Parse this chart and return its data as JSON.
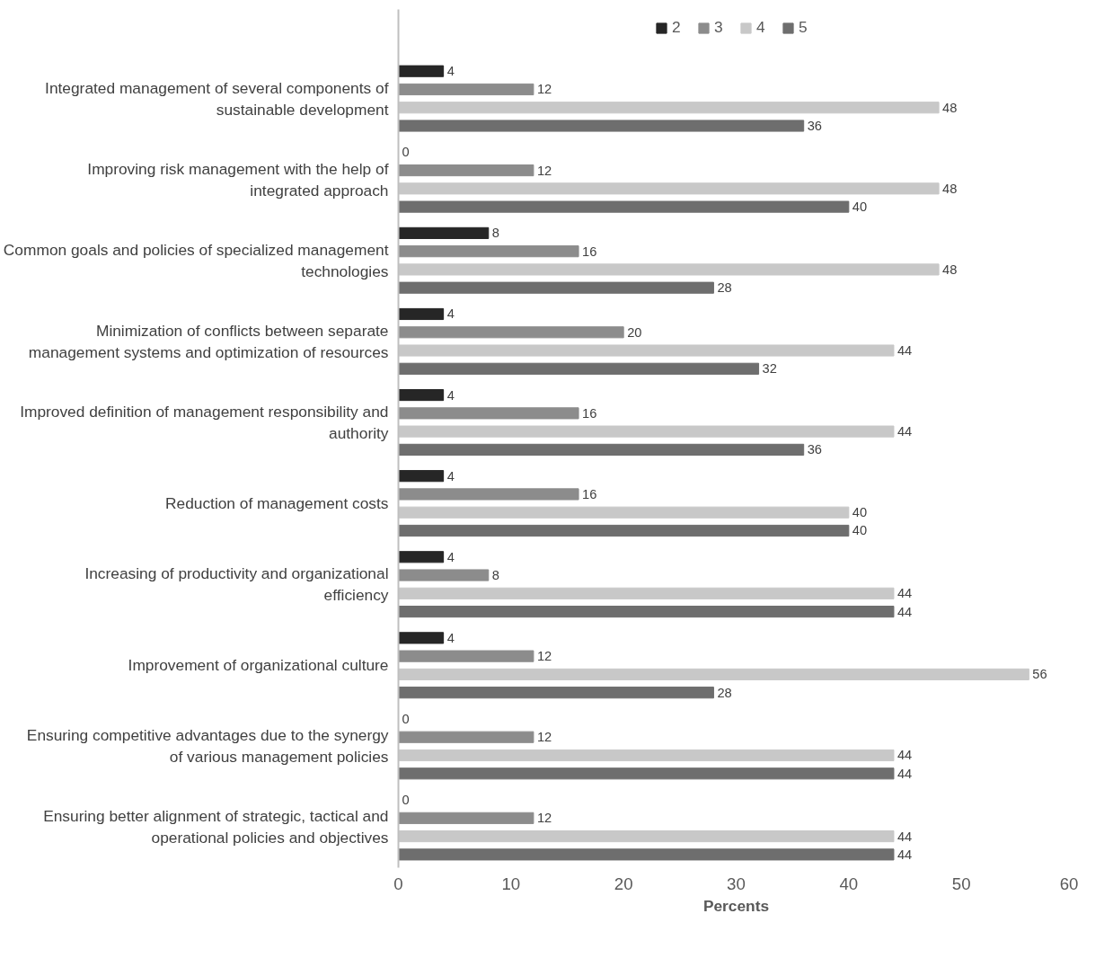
{
  "chart_data": {
    "type": "bar",
    "orientation": "horizontal",
    "xlabel": "Percents",
    "categories": [
      "Integrated management of several components of sustainable development",
      "Improving risk management with the help of integrated approach",
      "Common goals and policies of specialized management technologies",
      "Minimization of conflicts between separate management systems and optimization of resources",
      "Improved definition of management responsibility and authority",
      "Reduction of management costs",
      "Increasing of productivity and organizational efficiency",
      "Improvement of organizational culture",
      "Ensuring competitive advantages due to the synergy of various management policies",
      "Ensuring better alignment of strategic, tactical and operational policies and objectives"
    ],
    "series": [
      {
        "name": "2",
        "color": "#262626",
        "values": [
          4,
          0,
          8,
          4,
          4,
          4,
          4,
          4,
          0,
          0
        ]
      },
      {
        "name": "3",
        "color": "#8c8c8c",
        "values": [
          12,
          12,
          16,
          20,
          16,
          16,
          8,
          12,
          12,
          12
        ]
      },
      {
        "name": "4",
        "color": "#c8c8c8",
        "values": [
          48,
          48,
          48,
          44,
          44,
          40,
          44,
          56,
          44,
          44
        ]
      },
      {
        "name": "5",
        "color": "#6e6e6e",
        "values": [
          36,
          40,
          28,
          32,
          36,
          40,
          44,
          28,
          44,
          44
        ]
      }
    ],
    "xlim": [
      0,
      60
    ],
    "xticks": [
      0,
      10,
      20,
      30,
      40,
      50,
      60
    ],
    "data_labels": true,
    "legend": "top",
    "grid": false
  }
}
